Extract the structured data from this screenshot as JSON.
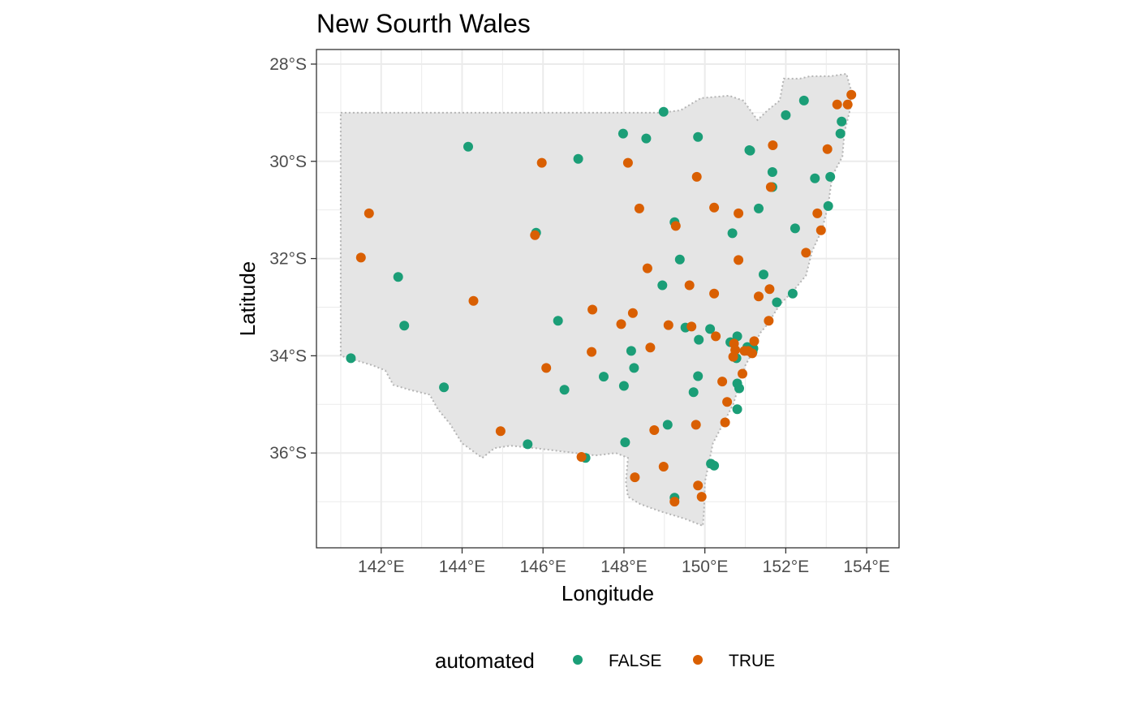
{
  "title": "New Sourth Wales",
  "xlabel": "Longitude",
  "ylabel": "Latitude",
  "colors": {
    "false": "#1b9e77",
    "true": "#d95f02",
    "land": "#e5e5e5",
    "border": "#b5b5b5",
    "grid": "#ebebeb"
  },
  "legend": {
    "title": "automated",
    "items": [
      "FALSE",
      "TRUE"
    ],
    "position": "bottom"
  },
  "chart_data": {
    "type": "scatter",
    "xlim": [
      140.4,
      154.8
    ],
    "ylim": [
      -37.95,
      -27.7
    ],
    "x_ticks": [
      142,
      144,
      146,
      148,
      150,
      152,
      154
    ],
    "x_tick_labels": [
      "142°E",
      "144°E",
      "146°E",
      "148°E",
      "150°E",
      "152°E",
      "154°E"
    ],
    "y_ticks": [
      -28,
      -30,
      -32,
      -34,
      -36
    ],
    "y_tick_labels": [
      "28°S",
      "30°S",
      "32°S",
      "34°S",
      "36°S"
    ],
    "grid": true,
    "region_outline": [
      [
        141.0,
        -29.0
      ],
      [
        148.9,
        -29.0
      ],
      [
        149.4,
        -28.95
      ],
      [
        149.9,
        -28.7
      ],
      [
        150.6,
        -28.65
      ],
      [
        150.95,
        -28.75
      ],
      [
        151.3,
        -29.15
      ],
      [
        151.55,
        -28.95
      ],
      [
        151.85,
        -28.75
      ],
      [
        151.95,
        -28.3
      ],
      [
        152.35,
        -28.3
      ],
      [
        152.6,
        -28.25
      ],
      [
        153.1,
        -28.25
      ],
      [
        153.5,
        -28.2
      ],
      [
        153.6,
        -28.5
      ],
      [
        153.6,
        -28.9
      ],
      [
        153.45,
        -29.4
      ],
      [
        153.4,
        -29.9
      ],
      [
        153.15,
        -30.3
      ],
      [
        153.05,
        -30.9
      ],
      [
        152.9,
        -31.4
      ],
      [
        152.65,
        -31.85
      ],
      [
        152.5,
        -32.35
      ],
      [
        152.2,
        -32.65
      ],
      [
        151.85,
        -32.95
      ],
      [
        151.55,
        -33.35
      ],
      [
        151.35,
        -33.55
      ],
      [
        151.2,
        -33.9
      ],
      [
        151.0,
        -34.2
      ],
      [
        150.85,
        -34.6
      ],
      [
        150.7,
        -35.0
      ],
      [
        150.45,
        -35.4
      ],
      [
        150.2,
        -35.8
      ],
      [
        150.1,
        -36.2
      ],
      [
        150.0,
        -36.6
      ],
      [
        149.98,
        -37.15
      ],
      [
        149.95,
        -37.5
      ],
      [
        149.5,
        -37.35
      ],
      [
        148.9,
        -37.2
      ],
      [
        148.4,
        -37.05
      ],
      [
        148.1,
        -36.9
      ],
      [
        148.05,
        -36.6
      ],
      [
        148.1,
        -36.1
      ],
      [
        147.8,
        -36.0
      ],
      [
        147.3,
        -36.05
      ],
      [
        146.8,
        -36.0
      ],
      [
        146.3,
        -35.95
      ],
      [
        145.8,
        -35.9
      ],
      [
        145.2,
        -35.85
      ],
      [
        144.8,
        -35.9
      ],
      [
        144.5,
        -36.1
      ],
      [
        144.0,
        -35.8
      ],
      [
        143.7,
        -35.4
      ],
      [
        143.4,
        -35.1
      ],
      [
        143.2,
        -34.8
      ],
      [
        142.7,
        -34.7
      ],
      [
        142.3,
        -34.6
      ],
      [
        142.1,
        -34.3
      ],
      [
        141.8,
        -34.2
      ],
      [
        141.4,
        -34.1
      ],
      [
        141.0,
        -34.0
      ]
    ],
    "series": [
      {
        "name": "FALSE",
        "points": [
          [
            141.25,
            -34.05
          ],
          [
            142.42,
            -32.38
          ],
          [
            142.57,
            -33.38
          ],
          [
            143.55,
            -34.65
          ],
          [
            144.15,
            -29.7
          ],
          [
            145.83,
            -31.47
          ],
          [
            145.62,
            -35.82
          ],
          [
            146.87,
            -29.95
          ],
          [
            146.37,
            -33.28
          ],
          [
            146.53,
            -34.7
          ],
          [
            147.05,
            -36.1
          ],
          [
            147.5,
            -34.43
          ],
          [
            147.98,
            -29.43
          ],
          [
            148.55,
            -29.53
          ],
          [
            148.0,
            -34.62
          ],
          [
            148.03,
            -35.78
          ],
          [
            148.18,
            -33.9
          ],
          [
            148.25,
            -34.25
          ],
          [
            148.98,
            -28.98
          ],
          [
            148.95,
            -32.55
          ],
          [
            149.08,
            -35.42
          ],
          [
            149.25,
            -31.25
          ],
          [
            149.38,
            -32.02
          ],
          [
            149.52,
            -33.42
          ],
          [
            149.72,
            -34.75
          ],
          [
            149.83,
            -29.5
          ],
          [
            149.85,
            -33.67
          ],
          [
            149.83,
            -34.42
          ],
          [
            149.25,
            -36.92
          ],
          [
            150.13,
            -33.45
          ],
          [
            150.15,
            -36.22
          ],
          [
            150.23,
            -36.26
          ],
          [
            150.63,
            -33.72
          ],
          [
            150.68,
            -31.48
          ],
          [
            150.8,
            -33.6
          ],
          [
            150.78,
            -34.05
          ],
          [
            150.8,
            -34.57
          ],
          [
            150.85,
            -34.67
          ],
          [
            150.8,
            -35.1
          ],
          [
            151.05,
            -33.82
          ],
          [
            151.12,
            -29.78
          ],
          [
            151.1,
            -29.77
          ],
          [
            151.18,
            -33.92
          ],
          [
            151.2,
            -33.85
          ],
          [
            151.33,
            -30.97
          ],
          [
            151.45,
            -32.33
          ],
          [
            151.67,
            -30.22
          ],
          [
            151.67,
            -30.53
          ],
          [
            151.78,
            -32.9
          ],
          [
            152.0,
            -29.05
          ],
          [
            152.17,
            -32.72
          ],
          [
            152.23,
            -31.38
          ],
          [
            152.45,
            -28.75
          ],
          [
            152.72,
            -30.35
          ],
          [
            153.05,
            -30.92
          ],
          [
            153.1,
            -30.32
          ],
          [
            153.35,
            -29.43
          ],
          [
            153.38,
            -29.18
          ]
        ]
      },
      {
        "name": "TRUE",
        "points": [
          [
            141.5,
            -31.98
          ],
          [
            141.7,
            -31.07
          ],
          [
            144.28,
            -32.87
          ],
          [
            144.95,
            -35.55
          ],
          [
            145.8,
            -31.52
          ],
          [
            145.97,
            -30.03
          ],
          [
            146.08,
            -34.25
          ],
          [
            146.95,
            -36.08
          ],
          [
            147.2,
            -33.92
          ],
          [
            147.22,
            -33.05
          ],
          [
            147.93,
            -33.35
          ],
          [
            148.1,
            -30.03
          ],
          [
            148.22,
            -33.12
          ],
          [
            148.27,
            -36.5
          ],
          [
            148.38,
            -30.97
          ],
          [
            148.58,
            -32.2
          ],
          [
            148.65,
            -33.83
          ],
          [
            148.75,
            -35.53
          ],
          [
            148.98,
            -36.28
          ],
          [
            149.1,
            -33.37
          ],
          [
            149.25,
            -37.0
          ],
          [
            149.28,
            -31.33
          ],
          [
            149.62,
            -32.55
          ],
          [
            149.67,
            -33.4
          ],
          [
            149.8,
            -30.32
          ],
          [
            149.78,
            -35.42
          ],
          [
            149.83,
            -36.67
          ],
          [
            149.92,
            -36.9
          ],
          [
            150.23,
            -30.95
          ],
          [
            150.23,
            -32.72
          ],
          [
            150.27,
            -33.6
          ],
          [
            150.43,
            -34.53
          ],
          [
            150.5,
            -35.37
          ],
          [
            150.55,
            -34.95
          ],
          [
            150.72,
            -33.75
          ],
          [
            150.7,
            -34.02
          ],
          [
            150.75,
            -33.88
          ],
          [
            150.83,
            -31.07
          ],
          [
            150.83,
            -32.03
          ],
          [
            150.93,
            -34.37
          ],
          [
            150.98,
            -33.9
          ],
          [
            151.07,
            -33.9
          ],
          [
            151.17,
            -33.95
          ],
          [
            151.22,
            -33.7
          ],
          [
            151.33,
            -32.78
          ],
          [
            151.58,
            -33.28
          ],
          [
            151.6,
            -32.63
          ],
          [
            151.63,
            -30.53
          ],
          [
            151.68,
            -29.67
          ],
          [
            152.5,
            -31.88
          ],
          [
            152.78,
            -31.07
          ],
          [
            152.87,
            -31.42
          ],
          [
            153.03,
            -29.75
          ],
          [
            153.27,
            -28.83
          ],
          [
            153.53,
            -28.83
          ],
          [
            153.62,
            -28.63
          ]
        ]
      }
    ]
  }
}
